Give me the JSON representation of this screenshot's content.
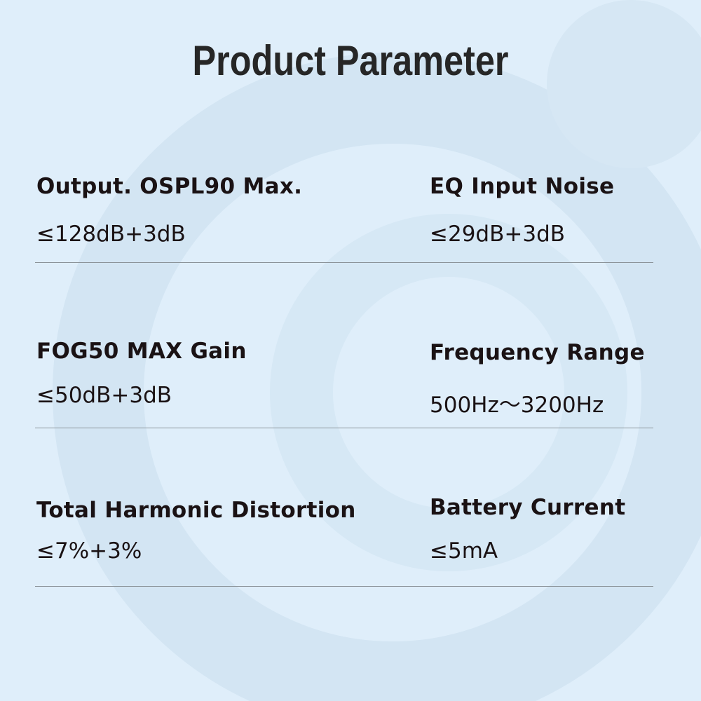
{
  "title": "Product Parameter",
  "colors": {
    "background": "#dfeefa",
    "text": "#1a1214",
    "divider": "#8c949a"
  },
  "params": [
    {
      "label": "Output. OSPL90 Max.",
      "value": "≤128dB+3dB"
    },
    {
      "label": "EQ Input Noise",
      "value": "≤29dB+3dB"
    },
    {
      "label": "FOG50 MAX Gain",
      "value": "≤50dB+3dB"
    },
    {
      "label": "Frequency Range",
      "value": "500Hz～3200Hz"
    },
    {
      "label": "Total Harmonic Distortion",
      "value": "≤7%+3%"
    },
    {
      "label": "Battery Current",
      "value": "≤5mA"
    }
  ]
}
